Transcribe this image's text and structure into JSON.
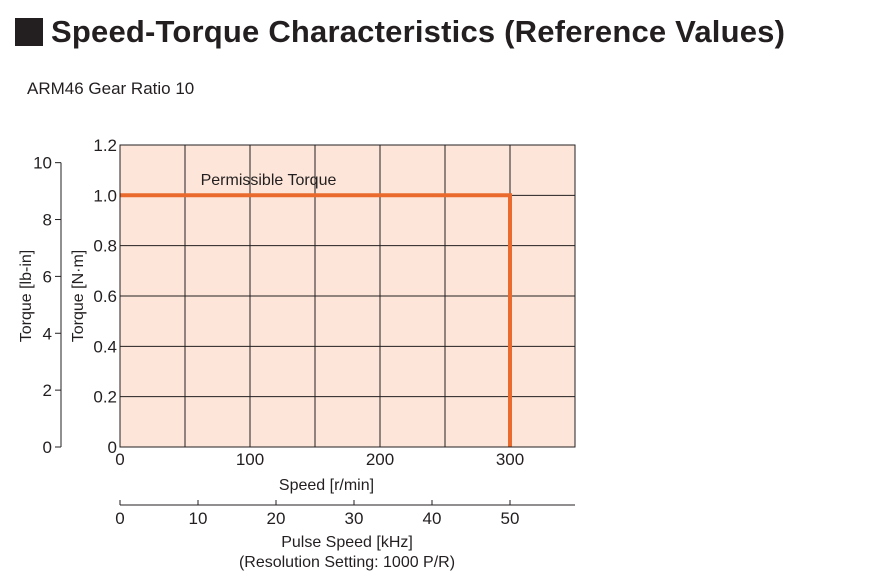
{
  "page": {
    "heading": "Speed-Torque Characteristics (Reference Values)",
    "subtitle": "ARM46 Gear Ratio 10"
  },
  "chart_data": {
    "type": "line",
    "title": "",
    "xlabel": "Speed [r/min]",
    "ylabel": "Torque [N·m]",
    "ylabel_secondary": "Torque [lb-in]",
    "xlabel_secondary": "Pulse Speed [kHz]",
    "xlabel_secondary_note": "(Resolution Setting: 1000 P/R)",
    "xlim": [
      0,
      350
    ],
    "ylim": [
      0,
      1.2
    ],
    "x_ticks": [
      0,
      100,
      200,
      300
    ],
    "x_tick_labels": [
      "0",
      "100",
      "200",
      "300"
    ],
    "y_ticks": [
      0,
      0.2,
      0.4,
      0.6,
      0.8,
      1.0,
      1.2
    ],
    "y_tick_labels": [
      "0",
      "0.2",
      "0.4",
      "0.6",
      "0.8",
      "1.0",
      "1.2"
    ],
    "x_grid": [
      50,
      100,
      150,
      200,
      250,
      300
    ],
    "y_grid": [
      0.2,
      0.4,
      0.6,
      0.8,
      1.0
    ],
    "secondary_y_ticks": [
      0,
      2,
      4,
      6,
      8,
      10
    ],
    "secondary_y_tick_labels": [
      "0",
      "2",
      "4",
      "6",
      "8",
      "10"
    ],
    "secondary_y_lbin_per_nm": 8.8507,
    "secondary_x_ticks": [
      0,
      10,
      20,
      30,
      40,
      50
    ],
    "secondary_x_tick_labels": [
      "0",
      "10",
      "20",
      "30",
      "40",
      "50"
    ],
    "secondary_x_rpm_per_khz": 6,
    "grid": true,
    "plot_background": "#fde6d9",
    "series": [
      {
        "name": "Permissible Torque",
        "color": "#ea6a2d",
        "points": [
          [
            0,
            1.0
          ],
          [
            300,
            1.0
          ],
          [
            300,
            0
          ]
        ]
      }
    ],
    "annotations": [
      {
        "text": "Permissible Torque",
        "x": 62,
        "y": 1.03
      }
    ]
  }
}
